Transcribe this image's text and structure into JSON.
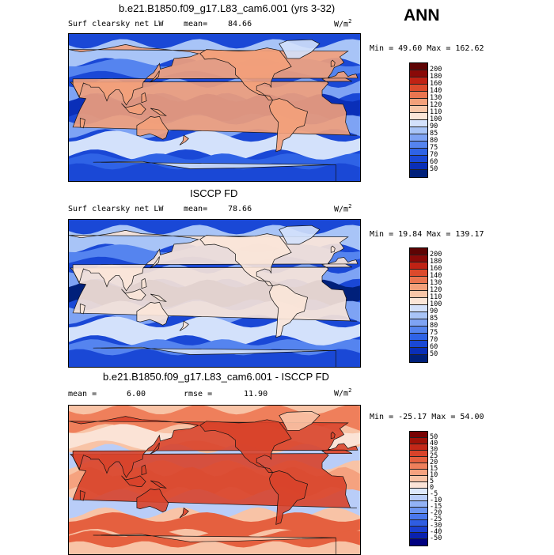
{
  "season": "ANN",
  "chart_data": [
    {
      "type": "heatmap",
      "title": "b.e21.B1850.f09_g17.L83_cam6.001 (yrs 3-32)",
      "variable": "Surf clearsky net LW",
      "mean_label": "mean=",
      "mean": "84.66",
      "rmse_label": "",
      "rmse": "",
      "units": "W/m",
      "units_sup": "2",
      "range_text": "Min =  49.60 Max = 162.62",
      "min": 49.6,
      "max": 162.62,
      "levels": [
        50,
        60,
        70,
        75,
        80,
        85,
        90,
        100,
        110,
        120,
        130,
        140,
        160,
        180,
        200
      ],
      "colors": [
        "#00207a",
        "#0a2fb8",
        "#1a48d6",
        "#2f63e6",
        "#5584ef",
        "#7ea3f4",
        "#a8c4f7",
        "#d3e1fb",
        "#fbe6d8",
        "#f8c6a8",
        "#f3a07a",
        "#ea7550",
        "#dc4a2c",
        "#c02214",
        "#8a0a08",
        "#5e0404"
      ],
      "fields": {
        "base": 2,
        "tropicsBand": 1,
        "southOceanBand": 3,
        "continentWarm": 10
      }
    },
    {
      "type": "heatmap",
      "title": "ISCCP FD",
      "variable": "Surf clearsky net LW",
      "mean_label": "mean=",
      "mean": "78.66",
      "rmse_label": "",
      "rmse": "",
      "units": "W/m",
      "units_sup": "2",
      "range_text": "Min =  19.84 Max = 139.17",
      "min": 19.84,
      "max": 139.17,
      "levels": [
        50,
        60,
        70,
        75,
        80,
        85,
        90,
        100,
        110,
        120,
        130,
        140,
        160,
        180,
        200
      ],
      "colors": [
        "#00207a",
        "#0a2fb8",
        "#1a48d6",
        "#2f63e6",
        "#5584ef",
        "#7ea3f4",
        "#a8c4f7",
        "#d3e1fb",
        "#fbe6d8",
        "#f8c6a8",
        "#f3a07a",
        "#ea7550",
        "#dc4a2c",
        "#c02214",
        "#8a0a08",
        "#5e0404"
      ],
      "fields": {
        "base": 2,
        "tropicsBand": 0,
        "southOceanBand": 4,
        "continentWarm": 8
      }
    },
    {
      "type": "heatmap",
      "title": "b.e21.B1850.f09_g17.L83_cam6.001 - ISCCP FD",
      "variable": "",
      "mean_label": "mean =",
      "mean": "6.00",
      "rmse_label": "rmse =",
      "rmse": "11.90",
      "units": "W/m",
      "units_sup": "2",
      "range_text": "Min = -25.17 Max =  54.00",
      "min": -25.17,
      "max": 54.0,
      "levels": [
        -50,
        -40,
        -30,
        -25,
        -20,
        -15,
        -10,
        -5,
        0,
        5,
        10,
        15,
        20,
        25,
        30,
        40,
        50
      ],
      "colors": [
        "#000080",
        "#0a22b0",
        "#1a3fd0",
        "#2f5de2",
        "#4a78ec",
        "#6c95f1",
        "#92b2f5",
        "#b9cdf8",
        "#dde8fb",
        "#fbe3d6",
        "#f8c3a6",
        "#f5a27f",
        "#ef7f5b",
        "#e5603f",
        "#d8432a",
        "#c42818",
        "#a01208",
        "#780202"
      ],
      "fields": {
        "base": 10,
        "tropicsBand": 12,
        "southOceanBand": 13,
        "continentWarm": 14
      }
    }
  ]
}
